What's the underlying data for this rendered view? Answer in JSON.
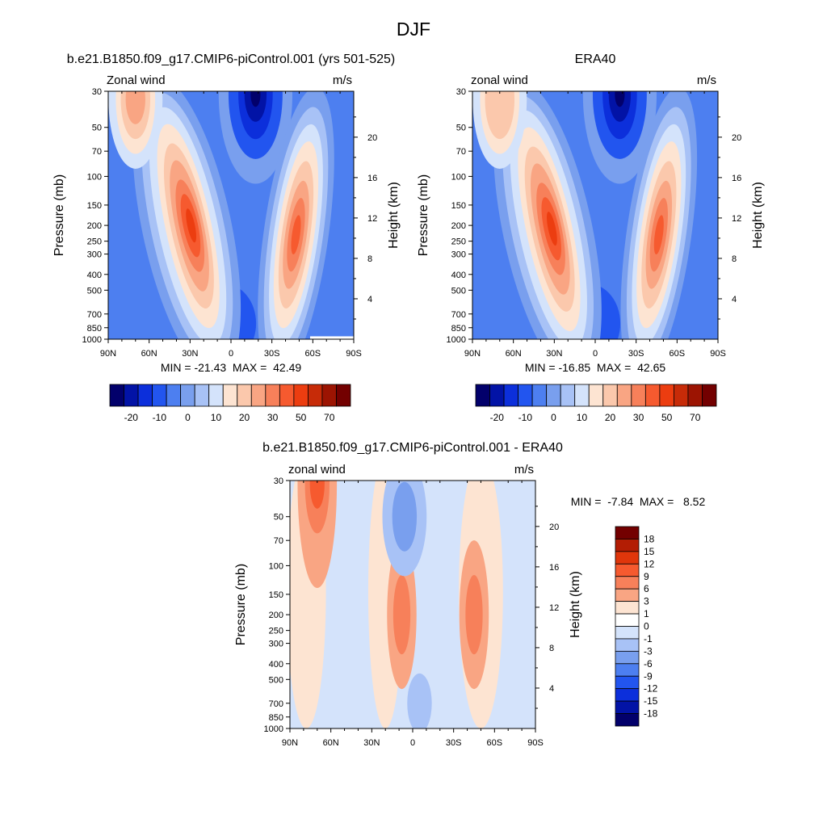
{
  "main_title": "DJF",
  "chart_data": [
    {
      "type": "heatmap",
      "title": "b.e21.B1850.f09_g17.CMIP6-piControl.001 (yrs 501-525)",
      "left_label": "Zonal wind",
      "units": "m/s",
      "ylabel": "Pressure (mb)",
      "ylabel_right": "Height (km)",
      "x_tick_labels": [
        "90N",
        "60N",
        "30N",
        "0",
        "30S",
        "60S",
        "90S"
      ],
      "y_tick_labels": [
        "30",
        "50",
        "70",
        "100",
        "150",
        "200",
        "250",
        "300",
        "400",
        "500",
        "700",
        "850",
        "1000"
      ],
      "height_tick_labels": [
        "20",
        "16",
        "12",
        "8",
        "4"
      ],
      "stats": "MIN = -21.43  MAX =  42.49",
      "min": -21.43,
      "max": 42.49,
      "colorbar_labels": [
        "-20",
        "-10",
        "0",
        "10",
        "20",
        "30",
        "50",
        "70"
      ],
      "colors": [
        "#02006b",
        "#0213a6",
        "#0c2fdb",
        "#2255ef",
        "#4d7ff0",
        "#799fee",
        "#a8c2f6",
        "#d4e3fb",
        "#fde4d2",
        "#fbc8ac",
        "#f9a583",
        "#f7805a",
        "#f65a2f",
        "#ec3d10",
        "#c72b08",
        "#9c1402",
        "#730000"
      ],
      "features": [
        {
          "lat": 29,
          "p": 200,
          "value": 42.49,
          "kind": "jet"
        },
        {
          "lat": -47,
          "p": 250,
          "value": 36,
          "kind": "jet"
        },
        {
          "lat": 70,
          "p": 30,
          "value": 25,
          "kind": "polar"
        },
        {
          "lat": -18,
          "p": 30,
          "value": -21.43,
          "kind": "easterly"
        }
      ]
    },
    {
      "type": "heatmap",
      "title": "ERA40",
      "left_label": "zonal wind",
      "units": "m/s",
      "ylabel": "Pressure (mb)",
      "ylabel_right": "Height (km)",
      "x_tick_labels": [
        "90N",
        "60N",
        "30N",
        "0",
        "30S",
        "60S",
        "90S"
      ],
      "y_tick_labels": [
        "30",
        "50",
        "70",
        "100",
        "150",
        "200",
        "250",
        "300",
        "400",
        "500",
        "700",
        "850",
        "1000"
      ],
      "height_tick_labels": [
        "20",
        "16",
        "12",
        "8",
        "4"
      ],
      "stats": "MIN = -16.85  MAX =  42.65",
      "min": -16.85,
      "max": 42.65,
      "colorbar_labels": [
        "-20",
        "-10",
        "0",
        "10",
        "20",
        "30",
        "50",
        "70"
      ],
      "colors": [
        "#02006b",
        "#0213a6",
        "#0c2fdb",
        "#2255ef",
        "#4d7ff0",
        "#799fee",
        "#a8c2f6",
        "#d4e3fb",
        "#fde4d2",
        "#fbc8ac",
        "#f9a583",
        "#f7805a",
        "#f65a2f",
        "#ec3d10",
        "#c72b08",
        "#9c1402",
        "#730000"
      ],
      "features": [
        {
          "lat": 32,
          "p": 200,
          "value": 42.65,
          "kind": "jet"
        },
        {
          "lat": -46,
          "p": 250,
          "value": 33,
          "kind": "jet"
        },
        {
          "lat": 70,
          "p": 50,
          "value": 14,
          "kind": "polar"
        },
        {
          "lat": -18,
          "p": 30,
          "value": -16.85,
          "kind": "easterly"
        }
      ]
    },
    {
      "type": "heatmap",
      "title": "b.e21.B1850.f09_g17.CMIP6-piControl.001 - ERA40",
      "left_label": "zonal wind",
      "units": "m/s",
      "ylabel": "Pressure (mb)",
      "ylabel_right": "Height (km)",
      "x_tick_labels": [
        "90N",
        "60N",
        "30N",
        "0",
        "30S",
        "60S",
        "90S"
      ],
      "y_tick_labels": [
        "30",
        "50",
        "70",
        "100",
        "150",
        "200",
        "250",
        "300",
        "400",
        "500",
        "700",
        "850",
        "1000"
      ],
      "height_tick_labels": [
        "20",
        "16",
        "12",
        "8",
        "4"
      ],
      "stats": "MIN =  -7.84  MAX =   8.52",
      "min": -7.84,
      "max": 8.52,
      "colorbar_labels": [
        "18",
        "15",
        "12",
        "9",
        "6",
        "3",
        "1",
        "0",
        "-1",
        "-3",
        "-6",
        "-9",
        "-12",
        "-15",
        "-18"
      ],
      "colors": [
        "#730000",
        "#b31d04",
        "#e0360b",
        "#f65a2f",
        "#f7805a",
        "#f9a583",
        "#fde4d2",
        "#ffffff",
        "#d4e3fb",
        "#a8c2f6",
        "#799fee",
        "#4d7ff0",
        "#2255ef",
        "#0c2fdb",
        "#0213a6",
        "#02006b"
      ],
      "features": [
        {
          "lat": 70,
          "p": 30,
          "value": 8.52,
          "kind": "positive"
        },
        {
          "lat": 8,
          "p": 200,
          "value": 6,
          "kind": "positive"
        },
        {
          "lat": -45,
          "p": 200,
          "value": 6,
          "kind": "positive"
        },
        {
          "lat": 6,
          "p": 50,
          "value": -7.84,
          "kind": "negative"
        }
      ]
    }
  ]
}
